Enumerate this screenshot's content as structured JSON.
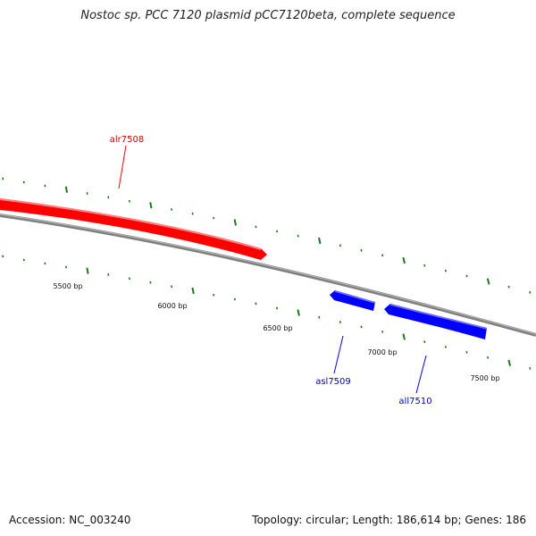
{
  "title": "Nostoc sp. PCC 7120 plasmid pCC7120beta, complete sequence",
  "ticks": [
    "5500 bp",
    "6000 bp",
    "6500 bp",
    "7000 bp",
    "7500 bp"
  ],
  "genes": [
    {
      "name": "alr7508",
      "strand": "forward",
      "color": "#ff0000"
    },
    {
      "name": "asl7509",
      "strand": "reverse",
      "color": "#0000ff"
    },
    {
      "name": "all7510",
      "strand": "reverse",
      "color": "#0000ff"
    }
  ],
  "colors": {
    "backbone": "#808080",
    "tick": "#1a7a1a",
    "forward": "#ff0000",
    "reverse": "#0000ff"
  },
  "footer": {
    "accession": "Accession: NC_003240",
    "summary": "Topology: circular; Length: 186,614 bp; Genes: 186"
  }
}
